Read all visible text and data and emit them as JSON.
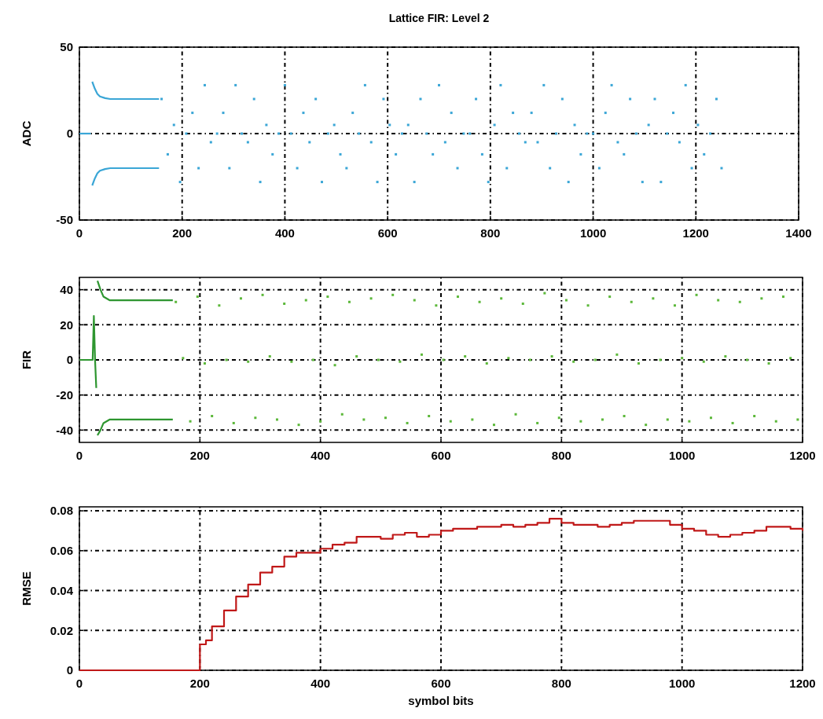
{
  "chart_data": [
    {
      "type": "scatter",
      "title": "Lattice FIR: Level 2",
      "ylabel": "ADC",
      "xlim": [
        0,
        1400
      ],
      "xticks": [
        0,
        200,
        400,
        600,
        800,
        1000,
        1200,
        1400
      ],
      "ylim": [
        -50,
        50
      ],
      "yticks": [
        -50,
        0,
        50
      ],
      "grid": true,
      "series": [
        {
          "type": "line",
          "color": "#3aa6d6",
          "x": [
            0,
            22
          ],
          "values": [
            0,
            0
          ]
        },
        {
          "type": "line",
          "color": "#3aa6d6",
          "x": [
            25,
            30,
            35,
            40,
            50,
            60,
            80,
            100,
            130,
            155
          ],
          "values": [
            30,
            26,
            23,
            21.5,
            20.5,
            20,
            20,
            20,
            20,
            20
          ]
        },
        {
          "type": "line",
          "color": "#3aa6d6",
          "x": [
            25,
            30,
            35,
            40,
            50,
            60,
            80,
            100,
            130,
            155
          ],
          "values": [
            -30,
            -26,
            -23,
            -21.5,
            -20.5,
            -20,
            -20,
            -20,
            -20,
            -20
          ]
        },
        {
          "color": "#3aa6d6",
          "marker": "square",
          "x": [
            160,
            172,
            184,
            196,
            208,
            220,
            232,
            244,
            256,
            268,
            280,
            292,
            304,
            316,
            328,
            340,
            352,
            364,
            376,
            388,
            400,
            412,
            424,
            436,
            448,
            460,
            472,
            484,
            496,
            508,
            520,
            532,
            544,
            556,
            568,
            580,
            592,
            604,
            616,
            628,
            640,
            652,
            664,
            676,
            688,
            700,
            712,
            724,
            736,
            748,
            760,
            772,
            784,
            796,
            808,
            820,
            832,
            844,
            856,
            868,
            880,
            892,
            904,
            916,
            928,
            940,
            952,
            964,
            976,
            988,
            1000,
            1012,
            1024,
            1036,
            1048,
            1060,
            1072,
            1084,
            1096,
            1108,
            1120,
            1132,
            1144,
            1156,
            1168,
            1180,
            1192,
            1204,
            1216,
            1228,
            1240,
            1250
          ],
          "values": [
            20,
            -12,
            5,
            -28,
            0,
            12,
            -20,
            28,
            -5,
            0,
            12,
            -20,
            28,
            0,
            -5,
            20,
            -28,
            5,
            -12,
            0,
            28,
            0,
            -20,
            12,
            -5,
            20,
            -28,
            0,
            5,
            -12,
            -20,
            12,
            0,
            28,
            -5,
            -28,
            20,
            5,
            -12,
            0,
            5,
            -28,
            20,
            0,
            -12,
            28,
            -5,
            12,
            -20,
            0,
            0,
            20,
            -12,
            -28,
            5,
            28,
            -20,
            12,
            0,
            -5,
            12,
            -5,
            28,
            -20,
            0,
            20,
            -28,
            5,
            -12,
            0,
            0,
            -20,
            12,
            28,
            -5,
            -12,
            20,
            0,
            -28,
            5,
            20,
            -28,
            0,
            12,
            -5,
            28,
            -20,
            5,
            -12,
            0,
            20,
            -20
          ]
        }
      ]
    },
    {
      "type": "scatter",
      "ylabel": "FIR",
      "xlim": [
        0,
        1200
      ],
      "xticks": [
        0,
        200,
        400,
        600,
        800,
        1000,
        1200
      ],
      "ylim": [
        -47,
        47
      ],
      "yticks": [
        -40,
        -20,
        0,
        20,
        40
      ],
      "grid": true,
      "series": [
        {
          "type": "line",
          "color": "#2e9630",
          "x": [
            0,
            22,
            24,
            26,
            28
          ],
          "values": [
            0,
            0,
            25,
            0,
            -16
          ]
        },
        {
          "type": "line",
          "color": "#2e9630",
          "x": [
            30,
            35,
            40,
            50,
            155
          ],
          "values": [
            45,
            40,
            36,
            34,
            34
          ]
        },
        {
          "type": "line",
          "color": "#2e9630",
          "x": [
            30,
            35,
            40,
            50,
            155
          ],
          "values": [
            -43,
            -40,
            -36,
            -34,
            -34
          ]
        },
        {
          "color": "#5cb83a",
          "marker": "square",
          "x": [
            160,
            172,
            184,
            196,
            208,
            220,
            232,
            244,
            256,
            268,
            280,
            292,
            304,
            316,
            328,
            340,
            352,
            364,
            376,
            388,
            400,
            412,
            424,
            436,
            448,
            460,
            472,
            484,
            496,
            508,
            520,
            532,
            544,
            556,
            568,
            580,
            592,
            604,
            616,
            628,
            640,
            652,
            664,
            676,
            688,
            700,
            712,
            724,
            736,
            748,
            760,
            772,
            784,
            796,
            808,
            820,
            832,
            844,
            856,
            868,
            880,
            892,
            904,
            916,
            928,
            940,
            952,
            964,
            976,
            988,
            1000,
            1012,
            1024,
            1036,
            1048,
            1060,
            1072,
            1084,
            1096,
            1108,
            1120,
            1132,
            1144,
            1156,
            1168,
            1180,
            1192
          ],
          "values": [
            33,
            1,
            -35,
            36,
            -2,
            -32,
            31,
            0,
            -36,
            35,
            -1,
            -33,
            37,
            2,
            -34,
            32,
            -1,
            -37,
            34,
            0,
            -35,
            36,
            -3,
            -31,
            33,
            2,
            -34,
            35,
            0,
            -33,
            37,
            -1,
            -36,
            34,
            3,
            -32,
            31,
            0,
            -35,
            36,
            2,
            -34,
            33,
            -2,
            -37,
            35,
            1,
            -31,
            32,
            0,
            -36,
            38,
            2,
            -33,
            34,
            -1,
            -35,
            31,
            0,
            -34,
            36,
            3,
            -32,
            33,
            -2,
            -37,
            35,
            0,
            -34,
            31,
            1,
            -35,
            37,
            -1,
            -33,
            34,
            2,
            -36,
            33,
            0,
            -32,
            35,
            -2,
            -35,
            36,
            1,
            -34
          ]
        }
      ]
    },
    {
      "type": "step",
      "ylabel": "RMSE",
      "xlabel": "symbol bits",
      "xlim": [
        0,
        1200
      ],
      "xticks": [
        0,
        200,
        400,
        600,
        800,
        1000,
        1200
      ],
      "ylim": [
        0,
        0.082
      ],
      "yticks": [
        0,
        0.02,
        0.04,
        0.06,
        0.08
      ],
      "grid": true,
      "series": [
        {
          "color": "#c01818",
          "x": [
            0,
            200,
            200,
            210,
            220,
            240,
            260,
            280,
            300,
            320,
            340,
            360,
            380,
            400,
            420,
            440,
            460,
            480,
            500,
            520,
            540,
            560,
            580,
            600,
            620,
            640,
            660,
            680,
            700,
            720,
            740,
            760,
            780,
            800,
            820,
            840,
            860,
            880,
            900,
            920,
            940,
            960,
            980,
            1000,
            1020,
            1040,
            1060,
            1080,
            1100,
            1120,
            1140,
            1160,
            1180,
            1200
          ],
          "values": [
            0,
            0,
            0.013,
            0.015,
            0.022,
            0.03,
            0.037,
            0.043,
            0.049,
            0.052,
            0.057,
            0.059,
            0.059,
            0.061,
            0.063,
            0.064,
            0.067,
            0.067,
            0.066,
            0.068,
            0.069,
            0.067,
            0.068,
            0.07,
            0.071,
            0.071,
            0.072,
            0.072,
            0.073,
            0.072,
            0.073,
            0.074,
            0.076,
            0.074,
            0.073,
            0.073,
            0.072,
            0.073,
            0.074,
            0.075,
            0.075,
            0.075,
            0.073,
            0.071,
            0.07,
            0.068,
            0.067,
            0.068,
            0.069,
            0.07,
            0.072,
            0.072,
            0.071,
            0.07
          ]
        }
      ]
    }
  ]
}
